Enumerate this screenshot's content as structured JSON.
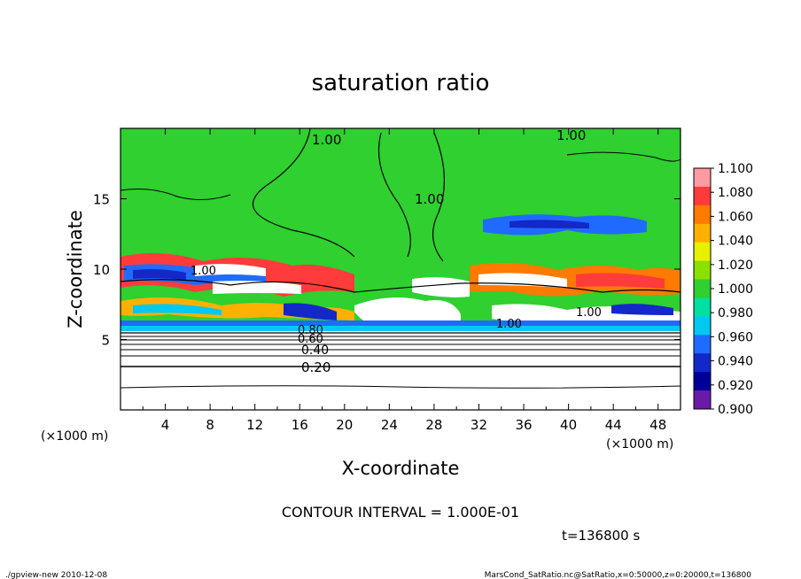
{
  "chart_data": {
    "type": "heatmap",
    "title": "saturation ratio",
    "xlabel": "X-coordinate",
    "ylabel": "Z-coordinate",
    "x_unit": "(×1000 m)",
    "y_unit": "(×1000 m)",
    "xlim": [
      0,
      50
    ],
    "ylim": [
      0,
      20
    ],
    "x_ticks": [
      "4",
      "8",
      "12",
      "16",
      "20",
      "24",
      "28",
      "32",
      "36",
      "40",
      "44",
      "48"
    ],
    "y_ticks": [
      "5",
      "10",
      "15"
    ],
    "colorbar": {
      "levels": [
        "1.100",
        "1.080",
        "1.060",
        "1.040",
        "1.020",
        "1.000",
        "0.980",
        "0.960",
        "0.940",
        "0.920",
        "0.900"
      ],
      "colors": [
        "#ff9aa2",
        "#ff3b3b",
        "#ff7a00",
        "#ffb000",
        "#e8f000",
        "#8ce000",
        "#2fd02f",
        "#00e0a0",
        "#00c8f0",
        "#1f6bff",
        "#1428c8",
        "#000099",
        "#6a1aa8"
      ]
    },
    "contour_labels": [
      "1.00",
      "1.00",
      "1.00",
      "1.00",
      "1.00",
      "1.00",
      "0.80",
      "0.60",
      "0.40",
      "0.20"
    ],
    "contour_interval_text": "CONTOUR INTERVAL = 1.000E-01",
    "time_text": "t=136800 s",
    "footer_left": "./gpview-new   2010-12-08",
    "footer_right": "MarsCond_SatRatio.nc@SatRatio,x=0:50000,z=0:20000,t=136800"
  }
}
